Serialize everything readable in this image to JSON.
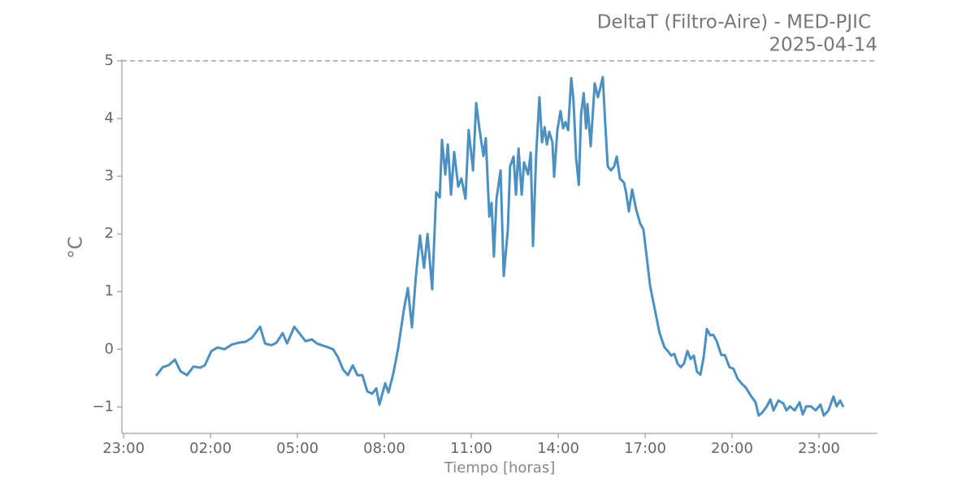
{
  "chart_data": {
    "type": "line",
    "title": "DeltaT (Filtro-Aire) - MED-PJIC",
    "subtitle": "2025-04-14",
    "x_label": "Tiempo [horas]",
    "y_label": "°C",
    "color": "#4a90c2",
    "hline": 5,
    "xlim": [
      -1.06,
      25.02
    ],
    "ylim": [
      -1.46,
      5
    ],
    "xticks": [
      {
        "value": -1,
        "label": "23:00"
      },
      {
        "value": 2,
        "label": "02:00"
      },
      {
        "value": 5,
        "label": "05:00"
      },
      {
        "value": 8,
        "label": "08:00"
      },
      {
        "value": 11,
        "label": "11:00"
      },
      {
        "value": 14,
        "label": "14:00"
      },
      {
        "value": 17,
        "label": "17:00"
      },
      {
        "value": 20,
        "label": "20:00"
      },
      {
        "value": 23,
        "label": "23:00"
      }
    ],
    "yticks": [
      {
        "value": -1,
        "label": "−1"
      },
      0,
      1,
      2,
      3,
      4,
      5
    ],
    "x": [
      0.12,
      0.35,
      0.54,
      0.77,
      0.96,
      1.19,
      1.41,
      1.64,
      1.8,
      2.03,
      2.25,
      2.48,
      2.73,
      2.95,
      3.21,
      3.43,
      3.71,
      3.88,
      4.1,
      4.27,
      4.49,
      4.64,
      4.89,
      5.11,
      5.28,
      5.5,
      5.67,
      5.84,
      6.07,
      6.23,
      6.4,
      6.57,
      6.74,
      6.91,
      7.07,
      7.24,
      7.41,
      7.58,
      7.72,
      7.83,
      8.03,
      8.14,
      8.31,
      8.48,
      8.67,
      8.81,
      8.95,
      9.09,
      9.23,
      9.37,
      9.49,
      9.65,
      9.79,
      9.91,
      9.99,
      10.1,
      10.19,
      10.3,
      10.41,
      10.55,
      10.66,
      10.8,
      10.91,
      11.06,
      11.17,
      11.28,
      11.42,
      11.5,
      11.62,
      11.7,
      11.78,
      11.87,
      12.01,
      12.12,
      12.26,
      12.34,
      12.46,
      12.54,
      12.63,
      12.74,
      12.82,
      12.96,
      13.05,
      13.13,
      13.24,
      13.35,
      13.44,
      13.53,
      13.61,
      13.69,
      13.8,
      13.86,
      13.97,
      14.08,
      14.17,
      14.25,
      14.34,
      14.45,
      14.53,
      14.62,
      14.71,
      14.79,
      14.88,
      14.96,
      15.01,
      15.12,
      15.26,
      15.37,
      15.46,
      15.54,
      15.62,
      15.71,
      15.82,
      15.93,
      16.02,
      16.13,
      16.27,
      16.35,
      16.44,
      16.55,
      16.69,
      16.83,
      16.94,
      17.05,
      17.17,
      17.33,
      17.5,
      17.67,
      17.78,
      17.9,
      18.01,
      18.12,
      18.23,
      18.34,
      18.46,
      18.57,
      18.68,
      18.79,
      18.91,
      19.02,
      19.13,
      19.25,
      19.35,
      19.47,
      19.63,
      19.75,
      19.91,
      20.05,
      20.19,
      20.36,
      20.47,
      20.64,
      20.81,
      20.92,
      21.04,
      21.2,
      21.32,
      21.43,
      21.6,
      21.77,
      21.88,
      22.0,
      22.16,
      22.33,
      22.44,
      22.56,
      22.72,
      22.89,
      23.05,
      23.17,
      23.33,
      23.5,
      23.61,
      23.73,
      23.84
    ],
    "values": [
      -0.46,
      -0.31,
      -0.28,
      -0.18,
      -0.38,
      -0.45,
      -0.3,
      -0.32,
      -0.28,
      -0.03,
      0.03,
      0.0,
      0.08,
      0.11,
      0.13,
      0.2,
      0.39,
      0.1,
      0.07,
      0.11,
      0.28,
      0.1,
      0.39,
      0.25,
      0.14,
      0.17,
      0.1,
      0.07,
      0.03,
      0.0,
      -0.14,
      -0.35,
      -0.45,
      -0.28,
      -0.45,
      -0.45,
      -0.73,
      -0.77,
      -0.68,
      -0.96,
      -0.59,
      -0.75,
      -0.42,
      0.03,
      0.68,
      1.06,
      0.38,
      1.27,
      1.97,
      1.41,
      2.0,
      1.04,
      2.72,
      2.63,
      3.63,
      3.03,
      3.55,
      2.68,
      3.42,
      2.82,
      2.96,
      2.61,
      3.8,
      3.1,
      4.27,
      3.83,
      3.35,
      3.66,
      2.3,
      2.54,
      1.61,
      2.61,
      3.1,
      1.27,
      2.07,
      3.17,
      3.34,
      2.68,
      3.48,
      2.68,
      3.24,
      3.03,
      3.41,
      1.79,
      3.38,
      4.37,
      3.59,
      3.85,
      3.55,
      3.77,
      3.59,
      2.99,
      3.8,
      4.13,
      3.83,
      3.94,
      3.8,
      4.7,
      4.3,
      3.31,
      2.85,
      4.08,
      4.44,
      3.83,
      4.25,
      3.52,
      4.61,
      4.37,
      4.55,
      4.72,
      3.94,
      3.17,
      3.1,
      3.17,
      3.34,
      2.96,
      2.89,
      2.7,
      2.39,
      2.77,
      2.42,
      2.18,
      2.08,
      1.62,
      1.1,
      0.7,
      0.28,
      0.03,
      -0.03,
      -0.11,
      -0.08,
      -0.25,
      -0.31,
      -0.25,
      -0.03,
      -0.17,
      -0.11,
      -0.39,
      -0.44,
      -0.14,
      0.35,
      0.24,
      0.25,
      0.14,
      -0.1,
      -0.1,
      -0.31,
      -0.34,
      -0.51,
      -0.61,
      -0.66,
      -0.8,
      -0.92,
      -1.15,
      -1.1,
      -0.99,
      -0.87,
      -1.06,
      -0.89,
      -0.94,
      -1.06,
      -0.99,
      -1.06,
      -0.92,
      -1.13,
      -0.99,
      -0.99,
      -1.06,
      -0.96,
      -1.15,
      -1.06,
      -0.82,
      -0.99,
      -0.89,
      -1.0
    ]
  }
}
